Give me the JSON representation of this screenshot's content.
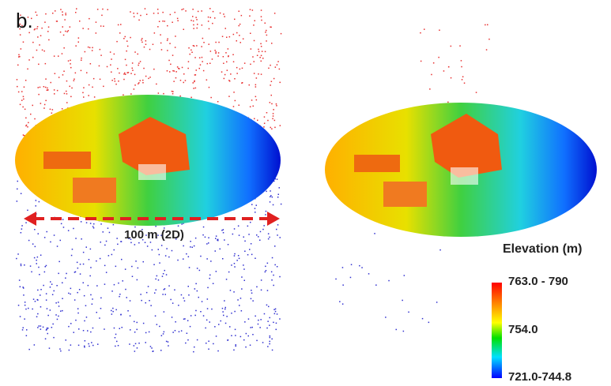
{
  "panel_label": "b.",
  "scale_bar": {
    "label": "100 m (2D)"
  },
  "legend": {
    "title": "Elevation (m)",
    "labels": [
      "763.0 - 790",
      "754.0",
      "721.0-744.8"
    ]
  }
}
